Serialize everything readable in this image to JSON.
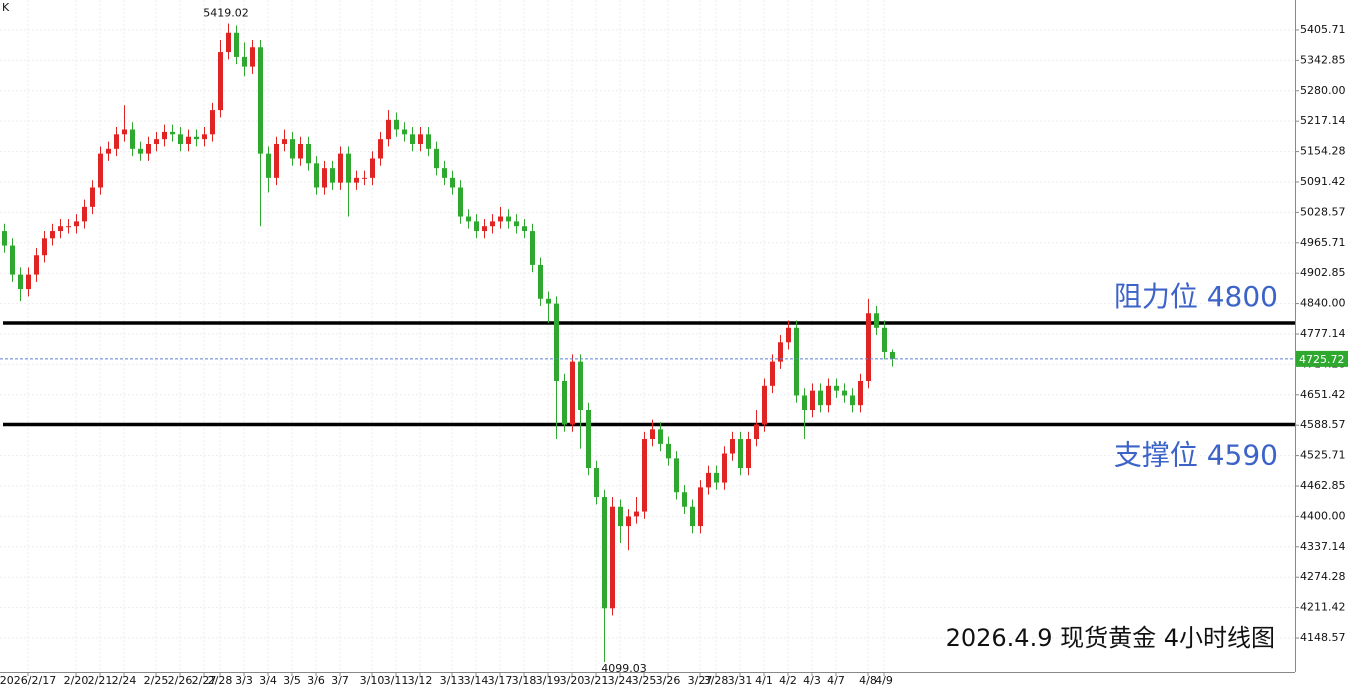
{
  "chart_data": {
    "type": "candlestick",
    "corner_label": "K",
    "caption": "2026.4.9 现货黄金 4小时线图",
    "up_color": "#e02424",
    "down_color": "#2ea82e",
    "grid": true,
    "ylim": [
      4078.3,
      5467.7
    ],
    "yticks": [
      5405.71,
      5342.85,
      {
        "value": 5280,
        "label": "5280.00"
      },
      5217.14,
      5154.28,
      5091.42,
      5028.57,
      4965.71,
      4902.85,
      {
        "value": 4840,
        "label": "4840.00"
      },
      4777.14,
      4714.28,
      4651.42,
      4588.57,
      4525.71,
      4462.85,
      {
        "value": 4400,
        "label": "4400.00"
      },
      4337.14,
      4274.28,
      4211.42,
      4148.57
    ],
    "levels": [
      {
        "label": "阻力位 4800",
        "value": 4800
      },
      {
        "label": "支撑位 4590",
        "value": 4590
      }
    ],
    "categories": [
      null,
      null,
      null,
      "2026/2/17",
      null,
      null,
      null,
      null,
      null,
      "2/20",
      null,
      null,
      "2/21",
      null,
      null,
      "2/24",
      null,
      null,
      null,
      "2/25",
      null,
      null,
      "2/26",
      null,
      null,
      "2/27",
      null,
      "2/28",
      null,
      null,
      "3/3",
      null,
      null,
      "3/4",
      null,
      null,
      "3/5",
      null,
      null,
      "3/6",
      null,
      null,
      "3/7",
      null,
      null,
      null,
      "3/10",
      null,
      null,
      "3/11",
      null,
      null,
      "3/12",
      null,
      null,
      null,
      "3/13",
      null,
      null,
      "3/14",
      null,
      null,
      "3/17",
      null,
      null,
      "3/18",
      null,
      null,
      "3/19",
      null,
      null,
      "3/20",
      null,
      null,
      "3/21",
      null,
      null,
      "3/24",
      null,
      null,
      "3/25",
      null,
      null,
      "3/26",
      null,
      null,
      null,
      "3/27",
      null,
      "3/28",
      null,
      null,
      "3/31",
      null,
      null,
      "4/1",
      null,
      null,
      "4/2",
      null,
      null,
      "4/3",
      null,
      null,
      "4/7",
      null,
      null,
      null,
      "4/8",
      null,
      "4/9",
      null
    ],
    "open": [
      4990,
      4960,
      4900,
      4870,
      4900,
      4940,
      4975,
      4990,
      5000,
      5000,
      5010,
      5040,
      5080,
      5150,
      5160,
      5190,
      5200,
      5160,
      5150,
      5170,
      5180,
      5195,
      5190,
      5170,
      5185,
      5180,
      5190,
      5240,
      5360,
      5400,
      5350,
      5330,
      5370,
      5150,
      5100,
      5170,
      5180,
      5140,
      5170,
      5130,
      5080,
      5120,
      5090,
      5150,
      5090,
      5100,
      5100,
      5140,
      5180,
      5220,
      5200,
      5190,
      5170,
      5190,
      5160,
      5120,
      5100,
      5080,
      5020,
      5010,
      4990,
      5000,
      5010,
      5020,
      5010,
      5000,
      4990,
      4920,
      4850,
      4840,
      4680,
      4590,
      4720,
      4620,
      4500,
      4440,
      4210,
      4420,
      4380,
      4400,
      4410,
      4560,
      4580,
      4550,
      4520,
      4450,
      4420,
      4380,
      4460,
      4490,
      4470,
      4530,
      4560,
      4500,
      4560,
      4590,
      4670,
      4720,
      4760,
      4790,
      4650,
      4620,
      4660,
      4630,
      4670,
      4660,
      4650,
      4630,
      4680,
      4820,
      4790,
      4740
    ],
    "high": [
      5005,
      4975,
      4915,
      4915,
      4955,
      4990,
      5005,
      5015,
      5015,
      5025,
      5055,
      5095,
      5165,
      5175,
      5205,
      5250,
      5215,
      5175,
      5185,
      5195,
      5210,
      5210,
      5205,
      5200,
      5200,
      5205,
      5255,
      5385,
      5419.02,
      5415,
      5380,
      5385,
      5385,
      5165,
      5185,
      5200,
      5195,
      5185,
      5185,
      5145,
      5135,
      5135,
      5165,
      5165,
      5115,
      5115,
      5155,
      5195,
      5240,
      5235,
      5215,
      5205,
      5205,
      5205,
      5175,
      5135,
      5115,
      5095,
      5035,
      5025,
      5015,
      5025,
      5040,
      5035,
      5025,
      5015,
      5005,
      4935,
      4865,
      4855,
      4695,
      4735,
      4735,
      4635,
      4515,
      4455,
      4440,
      4435,
      4415,
      4440,
      4575,
      4600,
      4595,
      4565,
      4535,
      4465,
      4435,
      4475,
      4505,
      4505,
      4545,
      4575,
      4575,
      4575,
      4620,
      4685,
      4735,
      4775,
      4805,
      4805,
      4665,
      4675,
      4675,
      4685,
      4685,
      4675,
      4665,
      4695,
      4850,
      4835,
      4805,
      4745
    ],
    "low": [
      4945,
      4885,
      4845,
      4855,
      4885,
      4925,
      4960,
      4975,
      4985,
      4985,
      4995,
      5025,
      5065,
      5135,
      5145,
      5175,
      5145,
      5135,
      5135,
      5155,
      5165,
      5175,
      5155,
      5155,
      5165,
      5165,
      5175,
      5225,
      5345,
      5335,
      5310,
      5315,
      5000,
      5070,
      5085,
      5155,
      5125,
      5125,
      5115,
      5065,
      5065,
      5075,
      5075,
      5020,
      5075,
      5085,
      5085,
      5125,
      5165,
      5185,
      5175,
      5155,
      5155,
      5145,
      5105,
      5085,
      5065,
      5005,
      4995,
      4975,
      4975,
      4985,
      4995,
      4995,
      4985,
      4975,
      4905,
      4835,
      4800,
      4560,
      4575,
      4575,
      4540,
      4485,
      4425,
      4099.03,
      4195,
      4345,
      4330,
      4385,
      4395,
      4545,
      4535,
      4505,
      4435,
      4405,
      4365,
      4365,
      4445,
      4455,
      4455,
      4515,
      4485,
      4485,
      4545,
      4575,
      4655,
      4705,
      4745,
      4635,
      4560,
      4605,
      4615,
      4615,
      4645,
      4635,
      4615,
      4615,
      4665,
      4775,
      4725,
      4710
    ],
    "close": [
      4960,
      4900,
      4870,
      4900,
      4940,
      4975,
      4990,
      5000,
      5000,
      5010,
      5040,
      5080,
      5150,
      5160,
      5190,
      5200,
      5160,
      5150,
      5170,
      5180,
      5195,
      5190,
      5170,
      5185,
      5180,
      5190,
      5240,
      5360,
      5400,
      5350,
      5330,
      5370,
      5150,
      5100,
      5170,
      5180,
      5140,
      5170,
      5130,
      5080,
      5120,
      5090,
      5150,
      5090,
      5100,
      5100,
      5140,
      5180,
      5220,
      5200,
      5190,
      5170,
      5190,
      5160,
      5120,
      5100,
      5080,
      5020,
      5010,
      4990,
      5000,
      5010,
      5020,
      5010,
      5000,
      4990,
      4920,
      4850,
      4840,
      4680,
      4590,
      4720,
      4620,
      4500,
      4440,
      4210,
      4420,
      4380,
      4400,
      4410,
      4560,
      4580,
      4550,
      4520,
      4450,
      4420,
      4380,
      4460,
      4490,
      4470,
      4530,
      4560,
      4500,
      4560,
      4590,
      4670,
      4720,
      4760,
      4790,
      4650,
      4620,
      4660,
      4630,
      4670,
      4660,
      4650,
      4630,
      4680,
      4820,
      4790,
      4740,
      4725.72
    ]
  }
}
